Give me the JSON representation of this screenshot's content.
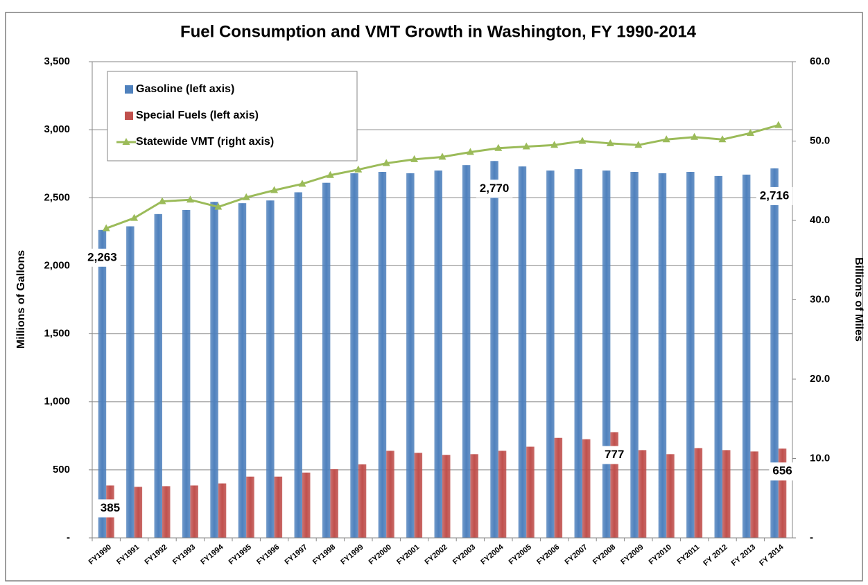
{
  "chart_data": {
    "type": "combo",
    "title": "Fuel Consumption and VMT Growth in Washington, FY 1990-2014",
    "ylabel": "Millions of Gallons",
    "y2label": "Billions of Miles",
    "categories": [
      "FY1990",
      "FY1991",
      "FY1992",
      "FY1993",
      "FY1994",
      "FY1995",
      "FY1996",
      "FY1997",
      "FY1998",
      "FY1999",
      "FY2000",
      "FY2001",
      "FY2002",
      "FY2003",
      "FY2004",
      "FY2005",
      "FY2006",
      "FY2007",
      "FY2008",
      "FY2009",
      "FY2010",
      "FY2011",
      "FY 2012",
      "FY 2013",
      "FY 2014"
    ],
    "series": [
      {
        "name": "Gasoline (left axis)",
        "type": "bar",
        "color": "#4f81bd",
        "values": [
          2263,
          2290,
          2380,
          2410,
          2470,
          2460,
          2480,
          2540,
          2610,
          2680,
          2690,
          2680,
          2700,
          2740,
          2770,
          2730,
          2700,
          2710,
          2700,
          2690,
          2680,
          2690,
          2660,
          2670,
          2716
        ],
        "value_labels": [
          "2,263",
          null,
          null,
          null,
          null,
          null,
          null,
          null,
          null,
          null,
          null,
          null,
          null,
          null,
          "2,770",
          null,
          null,
          null,
          null,
          null,
          null,
          null,
          null,
          null,
          "2,716"
        ]
      },
      {
        "name": "Special Fuels (left axis)",
        "type": "bar",
        "color": "#c0504d",
        "values": [
          385,
          375,
          380,
          385,
          400,
          450,
          450,
          480,
          505,
          540,
          640,
          625,
          610,
          615,
          640,
          670,
          735,
          725,
          777,
          645,
          615,
          660,
          645,
          635,
          656
        ],
        "value_labels": [
          "385",
          null,
          null,
          null,
          null,
          null,
          null,
          null,
          null,
          null,
          null,
          null,
          null,
          null,
          null,
          null,
          null,
          null,
          "777",
          null,
          null,
          null,
          null,
          null,
          "656"
        ]
      },
      {
        "name": "Statewide VMT (right axis)",
        "type": "line",
        "color": "#9bbb59",
        "axis": "y2",
        "values": [
          39.0,
          40.3,
          42.4,
          42.6,
          41.7,
          42.9,
          43.8,
          44.6,
          45.7,
          46.4,
          47.2,
          47.7,
          48.0,
          48.6,
          49.1,
          49.3,
          49.5,
          50.0,
          49.7,
          49.5,
          50.2,
          50.5,
          50.2,
          51.0,
          52.0
        ]
      }
    ],
    "ylim": [
      0,
      3500
    ],
    "yticks": [
      {
        "value": 0,
        "label": "-"
      },
      {
        "value": 500,
        "label": "500"
      },
      {
        "value": 1000,
        "label": "1,000"
      },
      {
        "value": 1500,
        "label": "1,500"
      },
      {
        "value": 2000,
        "label": "2,000"
      },
      {
        "value": 2500,
        "label": "2,500"
      },
      {
        "value": 3000,
        "label": "3,000"
      },
      {
        "value": 3500,
        "label": "3,500"
      }
    ],
    "y2lim": [
      0,
      60
    ],
    "y2ticks": [
      {
        "value": 0,
        "label": "-"
      },
      {
        "value": 10,
        "label": "10.0"
      },
      {
        "value": 20,
        "label": "20.0"
      },
      {
        "value": 30,
        "label": "30.0"
      },
      {
        "value": 40,
        "label": "40.0"
      },
      {
        "value": 50,
        "label": "50.0"
      },
      {
        "value": 60,
        "label": "60.0"
      }
    ],
    "grid": true,
    "legend": "top-left"
  }
}
